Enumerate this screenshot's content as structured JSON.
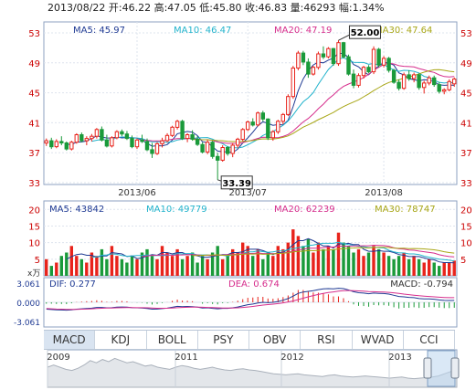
{
  "header": {
    "date": "2013/08/22",
    "open_label": "开:",
    "open": "46.22",
    "high_label": "高:",
    "high": "47.05",
    "low_label": "低:",
    "low": "45.80",
    "close_label": "收:",
    "close": "46.83",
    "volume_label": "量:",
    "volume": "46293",
    "change_label": "幅:",
    "change": "1.34%"
  },
  "colors": {
    "up": "#e8231b",
    "down": "#1a9a3a",
    "ma5": "#1f3a93",
    "ma10": "#22b3cc",
    "ma20": "#d62d8c",
    "ma30": "#a8a616",
    "dif": "#1f3a93",
    "dea": "#d62d8c",
    "axis_red": "#cc0000",
    "axis_blue": "#1f3a93"
  },
  "tabs": [
    {
      "label": "MACD",
      "active": true
    },
    {
      "label": "KDJ"
    },
    {
      "label": "BOLL"
    },
    {
      "label": "PSY"
    },
    {
      "label": "OBV"
    },
    {
      "label": "RSI"
    },
    {
      "label": "WVAD"
    },
    {
      "label": "CCI"
    }
  ],
  "chart_data": [
    {
      "type": "candlestick",
      "name": "price",
      "ma_legend": [
        {
          "label": "MA5: 45.97",
          "key": "ma5"
        },
        {
          "label": "MA10: 46.47",
          "key": "ma10"
        },
        {
          "label": "MA20: 47.19",
          "key": "ma20"
        },
        {
          "label": "MA30: 47.64",
          "key": "ma30"
        }
      ],
      "y_ticks": [
        "53",
        "49",
        "45",
        "41",
        "37",
        "33"
      ],
      "ylim": [
        33,
        53
      ],
      "x_ticks": [
        {
          "label": "2013/06",
          "index": 18
        },
        {
          "label": "2013/07",
          "index": 40
        },
        {
          "label": "2013/08",
          "index": 67
        }
      ],
      "annotations": [
        {
          "label": "52.00",
          "index": 58,
          "value": 52.0
        },
        {
          "label": "33.39",
          "index": 34,
          "value": 33.39
        }
      ],
      "ohlc": [
        [
          38.3,
          38.9,
          37.9,
          38.6
        ],
        [
          38.6,
          39.0,
          37.5,
          37.8
        ],
        [
          37.8,
          38.8,
          37.6,
          38.5
        ],
        [
          38.5,
          39.2,
          38.0,
          38.3
        ],
        [
          38.3,
          38.5,
          37.3,
          37.5
        ],
        [
          37.5,
          38.6,
          37.3,
          38.4
        ],
        [
          38.4,
          39.6,
          38.2,
          39.4
        ],
        [
          39.4,
          39.7,
          38.4,
          38.6
        ],
        [
          38.6,
          39.2,
          38.0,
          38.9
        ],
        [
          38.9,
          39.5,
          38.5,
          39.2
        ],
        [
          39.2,
          40.3,
          38.9,
          40.1
        ],
        [
          40.1,
          40.5,
          38.5,
          38.7
        ],
        [
          38.7,
          39.4,
          37.7,
          37.9
        ],
        [
          37.9,
          39.2,
          37.7,
          39.0
        ],
        [
          39.0,
          40.0,
          38.8,
          39.8
        ],
        [
          39.8,
          40.1,
          39.2,
          39.5
        ],
        [
          39.5,
          39.9,
          38.7,
          38.9
        ],
        [
          38.9,
          39.3,
          37.6,
          37.8
        ],
        [
          37.8,
          38.9,
          37.5,
          38.7
        ],
        [
          38.7,
          39.4,
          38.3,
          38.5
        ],
        [
          38.5,
          38.9,
          37.2,
          37.4
        ],
        [
          37.4,
          38.3,
          36.3,
          36.9
        ],
        [
          36.9,
          38.4,
          36.7,
          38.2
        ],
        [
          38.2,
          39.0,
          37.7,
          38.6
        ],
        [
          38.6,
          39.6,
          38.4,
          39.3
        ],
        [
          39.3,
          40.6,
          39.1,
          40.4
        ],
        [
          40.4,
          41.4,
          40.1,
          41.2
        ],
        [
          41.2,
          41.4,
          38.7,
          38.9
        ],
        [
          38.9,
          39.6,
          38.4,
          39.4
        ],
        [
          39.4,
          40.0,
          38.6,
          38.8
        ],
        [
          38.8,
          39.2,
          37.9,
          38.1
        ],
        [
          38.1,
          38.4,
          36.9,
          37.1
        ],
        [
          37.1,
          38.7,
          36.8,
          38.4
        ],
        [
          38.4,
          38.6,
          36.2,
          36.5
        ],
        [
          36.5,
          37.0,
          33.39,
          36.0
        ],
        [
          36.0,
          38.0,
          35.8,
          37.7
        ],
        [
          37.7,
          37.9,
          36.6,
          36.9
        ],
        [
          36.9,
          38.3,
          36.4,
          38.0
        ],
        [
          38.0,
          39.0,
          37.6,
          38.8
        ],
        [
          38.8,
          40.3,
          38.5,
          40.1
        ],
        [
          40.1,
          41.3,
          39.9,
          41.1
        ],
        [
          41.1,
          41.6,
          40.5,
          40.7
        ],
        [
          40.7,
          42.5,
          40.5,
          42.3
        ],
        [
          42.3,
          42.6,
          41.2,
          41.5
        ],
        [
          41.5,
          41.6,
          38.7,
          39.0
        ],
        [
          39.0,
          40.0,
          38.6,
          39.8
        ],
        [
          39.8,
          41.4,
          39.5,
          41.2
        ],
        [
          41.2,
          42.3,
          40.8,
          42.1
        ],
        [
          42.1,
          44.8,
          41.9,
          44.5
        ],
        [
          44.5,
          48.6,
          44.2,
          48.3
        ],
        [
          48.3,
          50.6,
          48.0,
          50.3
        ],
        [
          50.3,
          50.6,
          48.7,
          49.1
        ],
        [
          49.1,
          49.6,
          47.0,
          47.5
        ],
        [
          47.5,
          48.6,
          47.3,
          48.4
        ],
        [
          48.4,
          50.5,
          48.1,
          50.2
        ],
        [
          50.2,
          51.2,
          49.5,
          49.8
        ],
        [
          49.8,
          51.1,
          49.6,
          50.9
        ],
        [
          50.9,
          51.0,
          48.6,
          48.9
        ],
        [
          48.9,
          52.0,
          48.6,
          51.7
        ],
        [
          51.7,
          51.8,
          49.6,
          49.8
        ],
        [
          49.8,
          50.1,
          47.3,
          47.5
        ],
        [
          47.5,
          48.1,
          45.6,
          46.0
        ],
        [
          46.0,
          47.6,
          45.7,
          47.3
        ],
        [
          47.3,
          48.6,
          46.9,
          48.4
        ],
        [
          48.4,
          48.7,
          47.6,
          47.8
        ],
        [
          47.8,
          51.2,
          47.5,
          50.8
        ],
        [
          50.8,
          51.0,
          48.4,
          48.7
        ],
        [
          48.7,
          49.9,
          48.4,
          49.6
        ],
        [
          49.6,
          49.8,
          47.7,
          48.0
        ],
        [
          48.0,
          48.2,
          46.2,
          46.4
        ],
        [
          46.4,
          46.8,
          45.3,
          45.6
        ],
        [
          45.6,
          47.7,
          45.4,
          47.4
        ],
        [
          47.4,
          48.0,
          46.6,
          46.9
        ],
        [
          46.9,
          47.7,
          46.4,
          47.4
        ],
        [
          47.4,
          47.6,
          45.4,
          45.7
        ],
        [
          45.7,
          46.6,
          44.9,
          46.3
        ],
        [
          46.3,
          47.3,
          46.0,
          47.0
        ],
        [
          47.0,
          47.3,
          45.8,
          46.1
        ],
        [
          46.1,
          46.4,
          44.9,
          45.2
        ],
        [
          45.2,
          45.6,
          44.8,
          45.4
        ],
        [
          45.4,
          46.8,
          45.2,
          46.5
        ],
        [
          46.2,
          47.05,
          45.8,
          46.83
        ]
      ]
    },
    {
      "type": "bar",
      "name": "volume",
      "unit_label": "x万",
      "ma_legend": [
        {
          "label": "MA5: 43842",
          "key": "ma5"
        },
        {
          "label": "MA10: 49779",
          "key": "ma10"
        },
        {
          "label": "MA20: 62239",
          "key": "ma20"
        },
        {
          "label": "MA30: 78747",
          "key": "ma30"
        }
      ],
      "y_ticks": [
        "20",
        "15",
        "10",
        "5"
      ],
      "ylim": [
        0,
        22
      ],
      "values": [
        5,
        3,
        4,
        6,
        7,
        9,
        6,
        5,
        4,
        7,
        6,
        8,
        5,
        9,
        6,
        5,
        4,
        6,
        5,
        7,
        8,
        6,
        5,
        9,
        7,
        6,
        8,
        5,
        6,
        7,
        4,
        6,
        5,
        7,
        9,
        5,
        6,
        8,
        7,
        10,
        9,
        6,
        8,
        5,
        7,
        6,
        9,
        8,
        10,
        14,
        12,
        9,
        11,
        7,
        10,
        8,
        9,
        8,
        13,
        10,
        9,
        7,
        8,
        6,
        7,
        9,
        8,
        7,
        6,
        5,
        6,
        7,
        5,
        6,
        5,
        4,
        5,
        4,
        3,
        4,
        4,
        4.6
      ]
    },
    {
      "type": "line",
      "name": "macd",
      "dif_label": "DIF: 0.277",
      "dea_label": "DEA: 0.674",
      "macd_label": "MACD: -0.794",
      "y_ticks": [
        "3.061",
        "0.000",
        "-3.061"
      ],
      "ylim": [
        -3.061,
        3.061
      ],
      "dif": [
        -1.0,
        -1.05,
        -1.1,
        -1.12,
        -1.15,
        -1.1,
        -1.0,
        -0.95,
        -0.9,
        -0.85,
        -0.75,
        -0.75,
        -0.8,
        -0.78,
        -0.7,
        -0.68,
        -0.7,
        -0.78,
        -0.8,
        -0.82,
        -0.9,
        -1.0,
        -0.98,
        -0.92,
        -0.85,
        -0.72,
        -0.58,
        -0.62,
        -0.6,
        -0.62,
        -0.7,
        -0.82,
        -0.8,
        -0.88,
        -0.95,
        -0.88,
        -0.88,
        -0.8,
        -0.68,
        -0.52,
        -0.35,
        -0.25,
        -0.1,
        0.0,
        -0.05,
        0.0,
        0.12,
        0.3,
        0.55,
        0.9,
        1.3,
        1.5,
        1.6,
        1.7,
        1.85,
        1.95,
        2.0,
        1.95,
        2.05,
        2.0,
        1.8,
        1.55,
        1.4,
        1.35,
        1.25,
        1.35,
        1.3,
        1.28,
        1.2,
        1.02,
        0.85,
        0.8,
        0.72,
        0.68,
        0.55,
        0.5,
        0.5,
        0.45,
        0.35,
        0.28,
        0.26,
        0.277
      ],
      "dea": [
        -0.9,
        -0.95,
        -0.98,
        -1.0,
        -1.02,
        -1.03,
        -1.02,
        -1.0,
        -0.98,
        -0.95,
        -0.9,
        -0.86,
        -0.84,
        -0.82,
        -0.8,
        -0.78,
        -0.77,
        -0.77,
        -0.78,
        -0.79,
        -0.8,
        -0.84,
        -0.86,
        -0.87,
        -0.86,
        -0.83,
        -0.78,
        -0.75,
        -0.72,
        -0.7,
        -0.7,
        -0.72,
        -0.74,
        -0.76,
        -0.8,
        -0.82,
        -0.83,
        -0.83,
        -0.8,
        -0.75,
        -0.68,
        -0.6,
        -0.5,
        -0.4,
        -0.33,
        -0.26,
        -0.18,
        -0.08,
        0.05,
        0.2,
        0.4,
        0.6,
        0.8,
        0.98,
        1.15,
        1.3,
        1.42,
        1.52,
        1.62,
        1.7,
        1.72,
        1.7,
        1.66,
        1.62,
        1.57,
        1.55,
        1.52,
        1.49,
        1.45,
        1.38,
        1.3,
        1.2,
        1.12,
        1.04,
        0.96,
        0.9,
        0.85,
        0.8,
        0.74,
        0.7,
        0.68,
        0.674
      ]
    },
    {
      "type": "area",
      "name": "history-navigator",
      "x_ticks": [
        "2009",
        "2011",
        "2012",
        "2013"
      ]
    }
  ]
}
